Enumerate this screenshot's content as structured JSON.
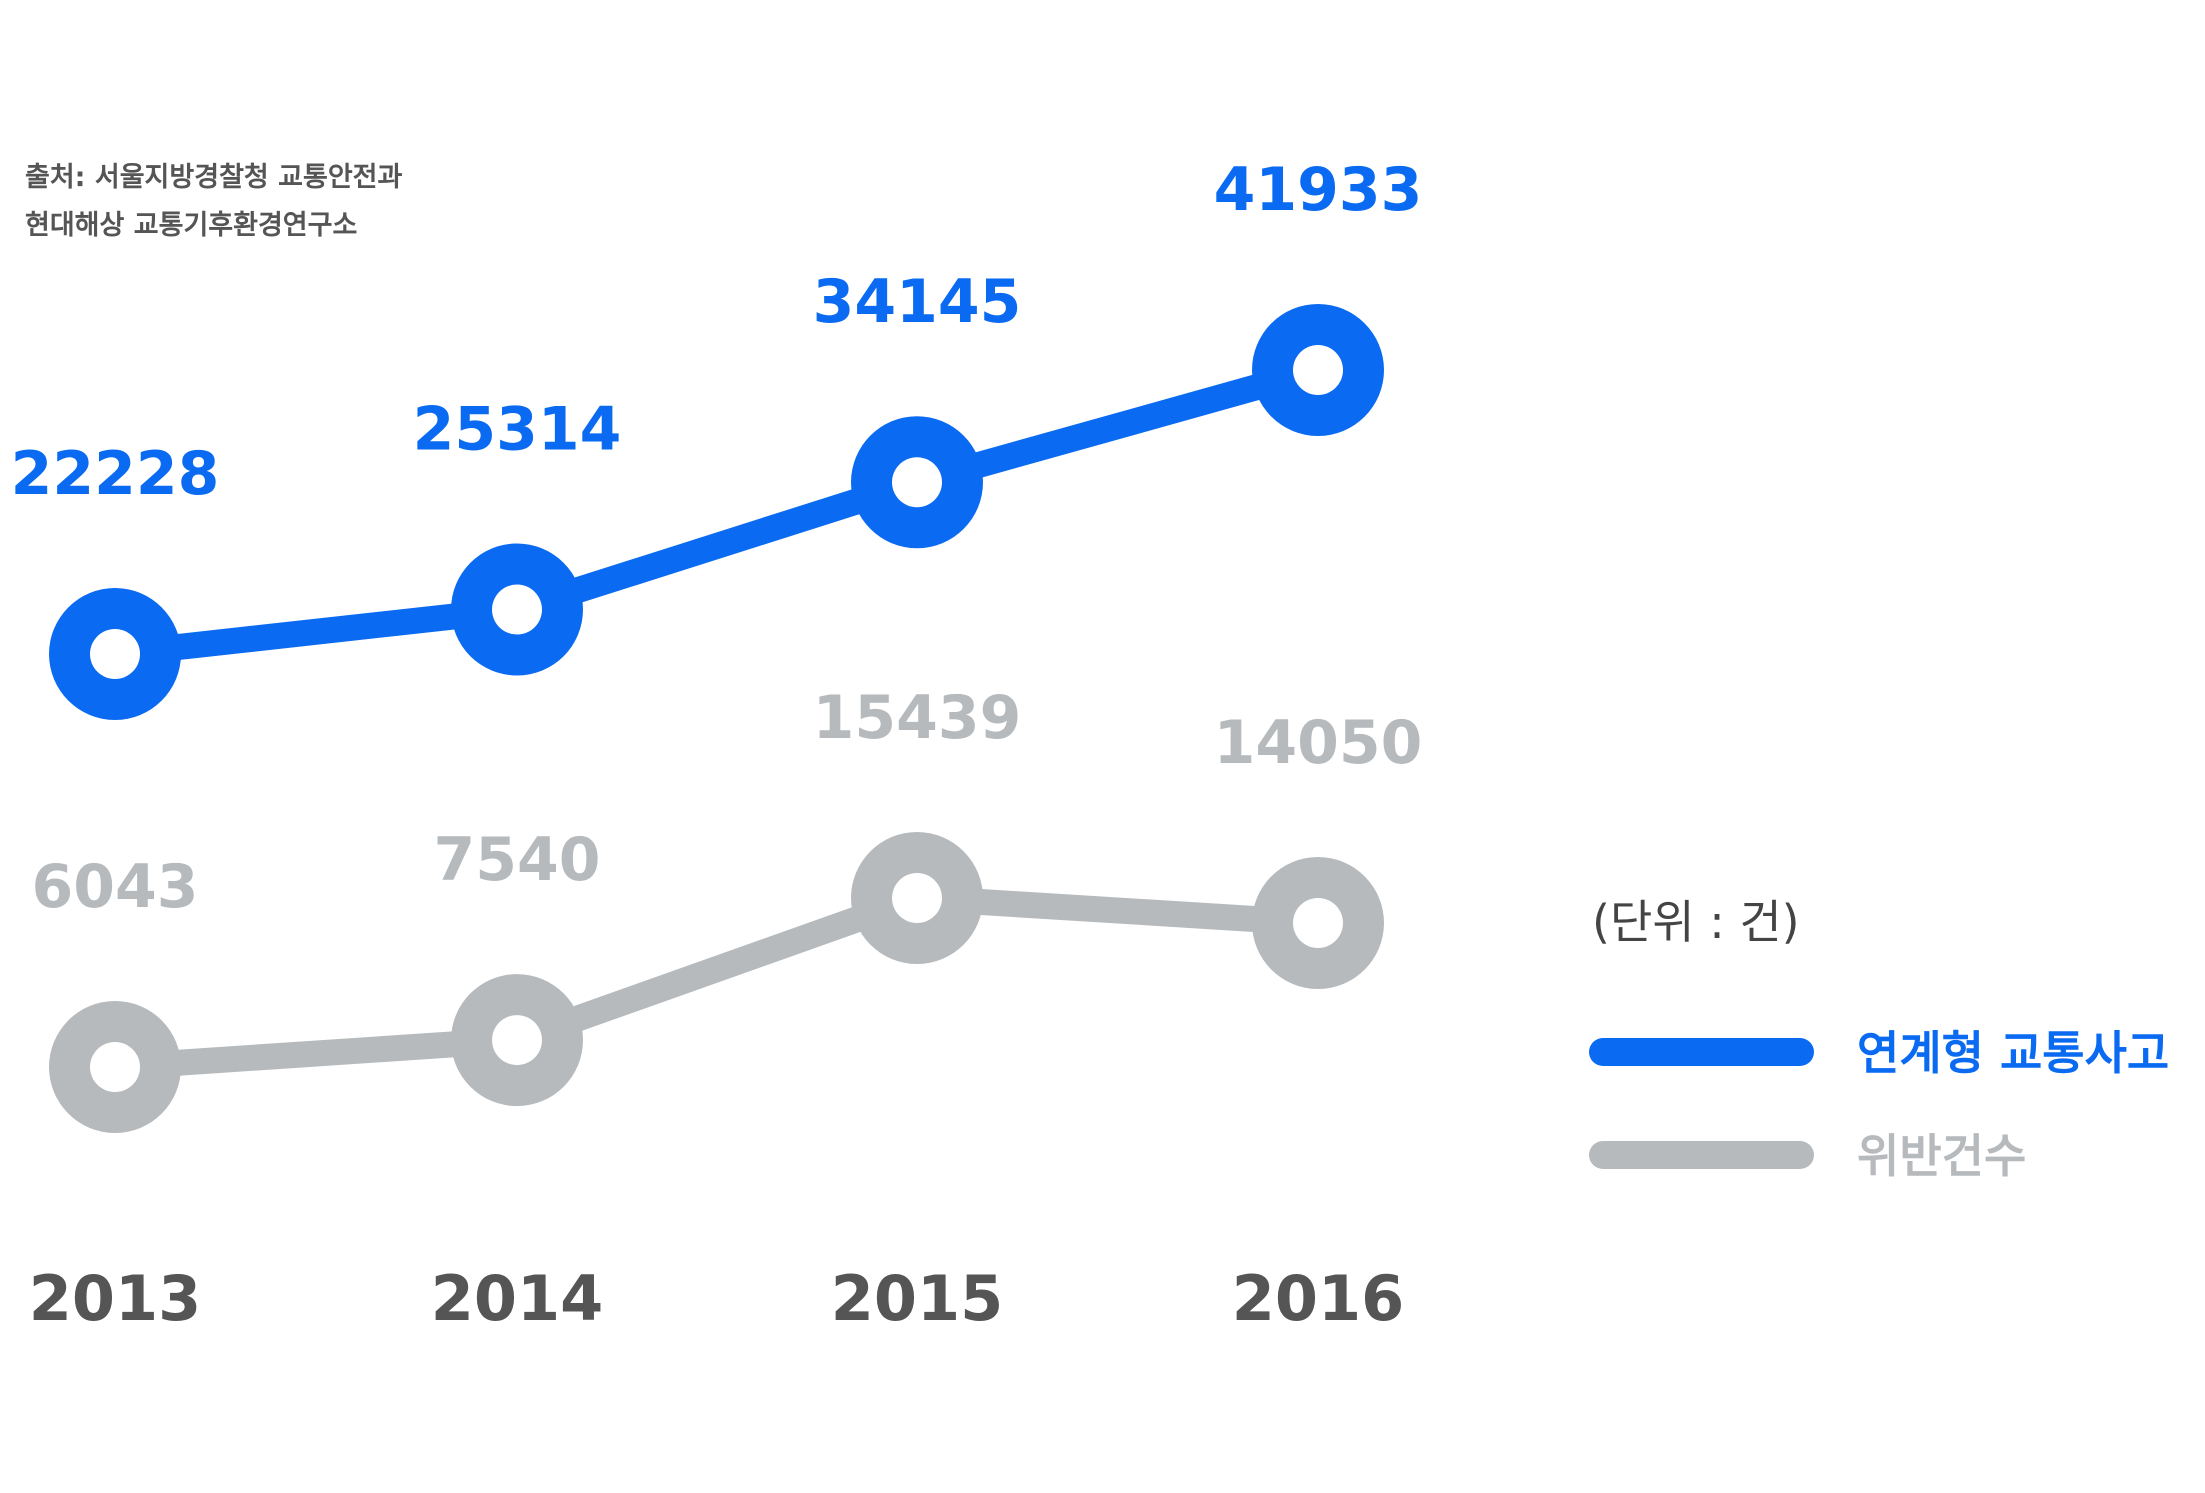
{
  "source": {
    "line1": "출처: 서울지방경찰청 교통안전과",
    "line2": "현대해상 교통기후환경연구소"
  },
  "unit_label": "(단위 : 건)",
  "colors": {
    "blue": "#0A6BF2",
    "gray": "#B6BABD",
    "text": "#555555"
  },
  "chart_data": {
    "type": "line",
    "categories": [
      "2013",
      "2014",
      "2015",
      "2016"
    ],
    "series": [
      {
        "name": "연계형 교통사고",
        "values": [
          22228,
          25314,
          34145,
          41933
        ],
        "color": "#0A6BF2"
      },
      {
        "name": "위반건수",
        "values": [
          6043,
          7540,
          15439,
          14050
        ],
        "color": "#B6BABD"
      }
    ],
    "legend_position": "right",
    "grid": false
  }
}
